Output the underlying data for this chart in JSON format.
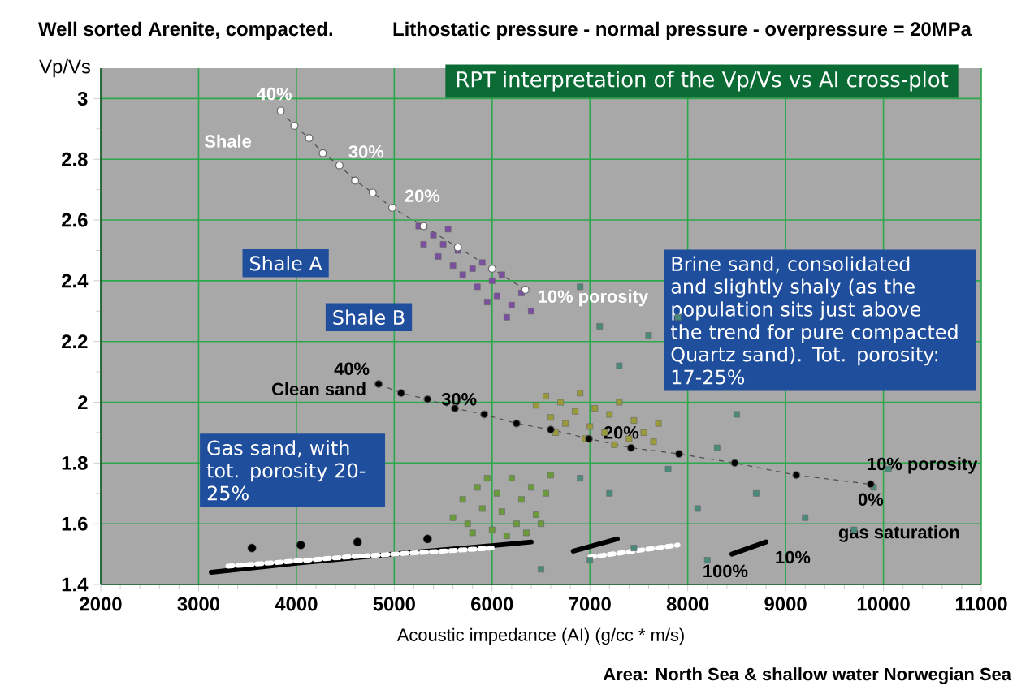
{
  "chart_data": {
    "type": "scatter",
    "title": "Well sorted Arenite, compacted.",
    "subtitle": "Lithostatic pressure - normal pressure - overpressure = 20MPa",
    "xlabel": "Acoustic impedance (AI) (g/cc * m/s)",
    "ylabel": "Vp/Vs",
    "xlim": [
      2000,
      11000
    ],
    "xticks": [
      2000,
      3000,
      4000,
      5000,
      6000,
      7000,
      8000,
      9000,
      10000,
      11000
    ],
    "ylim": [
      1.4,
      3.1
    ],
    "yticks": [
      1.4,
      1.6,
      1.8,
      2,
      2.2,
      2.4,
      2.6,
      2.8,
      3
    ],
    "grid": true,
    "series": [
      {
        "type": "line",
        "color": "#ffffff",
        "marker": "circle",
        "line_style": "dashed",
        "x": [
          3840,
          3980,
          4130,
          4270,
          4440,
          4600,
          4780,
          4980,
          5300,
          5650,
          6000,
          6340
        ],
        "values": [
          2.96,
          2.91,
          2.87,
          2.82,
          2.78,
          2.73,
          2.69,
          2.64,
          2.58,
          2.51,
          2.44,
          2.37
        ]
      },
      {
        "type": "line",
        "color": "#000000",
        "marker": "circle",
        "line_style": "dashed",
        "x": [
          4840,
          5070,
          5340,
          5620,
          5920,
          6250,
          6600,
          6990,
          7420,
          7910,
          8480,
          9110,
          9870
        ],
        "values": [
          2.06,
          2.03,
          2.01,
          1.98,
          1.96,
          1.93,
          1.91,
          1.88,
          1.85,
          1.83,
          1.8,
          1.76,
          1.73
        ]
      },
      {
        "type": "line",
        "color": "#000000",
        "marker": "none",
        "line_style": "solid",
        "x": [
          3130,
          4000,
          5000,
          6070,
          6400,
          6600,
          6830,
          7280,
          8000,
          8450,
          8800
        ],
        "values": [
          1.44,
          1.47,
          1.5,
          1.53,
          1.54,
          null,
          1.51,
          1.55,
          null,
          1.5,
          1.54
        ]
      },
      {
        "type": "line",
        "color": "#ffffff",
        "marker": "none",
        "line_style": "dashed",
        "x": [
          3300,
          4500,
          6000,
          6500,
          7000,
          7900
        ],
        "values": [
          1.46,
          1.49,
          1.52,
          null,
          1.49,
          1.53
        ]
      },
      {
        "color": "#000000",
        "marker": "circle",
        "x": [
          3545,
          4045,
          4625,
          5340
        ],
        "values": [
          1.52,
          1.53,
          1.54,
          1.55
        ]
      },
      {
        "color": "#7b4fa0",
        "marker": "square",
        "x": [
          5250,
          5300,
          5400,
          5450,
          5500,
          5600,
          5650,
          5700,
          5800,
          5850,
          5900,
          6000,
          6050,
          6100,
          6200,
          6300,
          6400,
          5550,
          6150,
          5950
        ],
        "values": [
          2.58,
          2.52,
          2.55,
          2.48,
          2.52,
          2.45,
          2.5,
          2.42,
          2.44,
          2.38,
          2.46,
          2.4,
          2.35,
          2.42,
          2.32,
          2.36,
          2.3,
          2.57,
          2.28,
          2.33
        ]
      },
      {
        "color": "#9a9a3a",
        "marker": "square",
        "x": [
          6450,
          6550,
          6600,
          6700,
          6750,
          6850,
          6900,
          7000,
          7050,
          7150,
          7200,
          7300,
          7400,
          7450,
          7550,
          7650,
          6950,
          7250,
          6650,
          7700
        ],
        "values": [
          1.99,
          2.02,
          1.95,
          2.0,
          1.93,
          1.97,
          2.03,
          1.92,
          1.98,
          1.9,
          1.96,
          2.0,
          1.88,
          1.94,
          1.9,
          1.87,
          1.88,
          1.86,
          1.9,
          1.93
        ]
      },
      {
        "color": "#6a9a3a",
        "marker": "square",
        "x": [
          5600,
          5700,
          5750,
          5850,
          5900,
          6000,
          6050,
          6100,
          6200,
          6250,
          6300,
          6400,
          6450,
          6550,
          6600,
          5950,
          6150,
          5800,
          6350,
          6500
        ],
        "values": [
          1.62,
          1.68,
          1.6,
          1.72,
          1.65,
          1.58,
          1.7,
          1.64,
          1.75,
          1.6,
          1.68,
          1.72,
          1.63,
          1.7,
          1.76,
          1.75,
          1.56,
          1.57,
          1.57,
          1.6
        ]
      },
      {
        "color": "#4a8a7a",
        "marker": "square",
        "x": [
          6900,
          7200,
          7800,
          8300,
          8500,
          7900,
          7600,
          7100,
          6900,
          7300,
          8100,
          7450,
          8200,
          9200,
          9900,
          10050,
          9700,
          8700,
          7000,
          6500
        ],
        "values": [
          1.75,
          1.7,
          1.78,
          1.85,
          1.96,
          2.28,
          2.22,
          2.25,
          2.38,
          2.12,
          1.65,
          1.52,
          1.48,
          1.62,
          1.72,
          1.78,
          1.58,
          1.7,
          1.48,
          1.45
        ]
      }
    ],
    "annotations": [
      "RPT interpretation of the Vp/Vs vs  AI cross-plot",
      "Shale A",
      "Shale B",
      "Brine sand, consolidated and slightly shaly (as the population sits just above the trend for pure compacted Quartz sand). Tot. porosity: 17-25%",
      "Gas sand, with tot. porosity 20-25%",
      {
        "text": "40%",
        "x": 3840,
        "y": 2.96
      },
      {
        "text": "30%",
        "x": 4440,
        "y": 2.78
      },
      {
        "text": "20%",
        "x": 4980,
        "y": 2.64
      },
      {
        "text": "10% porosity",
        "x": 6340,
        "y": 2.37
      },
      {
        "text": "40%",
        "x": 4840,
        "y": 2.06
      },
      {
        "text": "Clean sand",
        "x": 4840,
        "y": 2.06
      },
      {
        "text": "30%",
        "x": 5920,
        "y": 1.96
      },
      {
        "text": "20%",
        "x": 7420,
        "y": 1.85
      },
      {
        "text": "10% porosity",
        "x": 9870,
        "y": 1.73
      },
      {
        "text": "0%",
        "x": 9870,
        "y": 1.73
      },
      "gas saturation",
      {
        "text": "100%",
        "x": 8450,
        "y": 1.5
      },
      {
        "text": "10%",
        "x": 8800,
        "y": 1.54
      },
      "Shale",
      "Area: North Sea & shallow water Norwegian Sea"
    ]
  }
}
